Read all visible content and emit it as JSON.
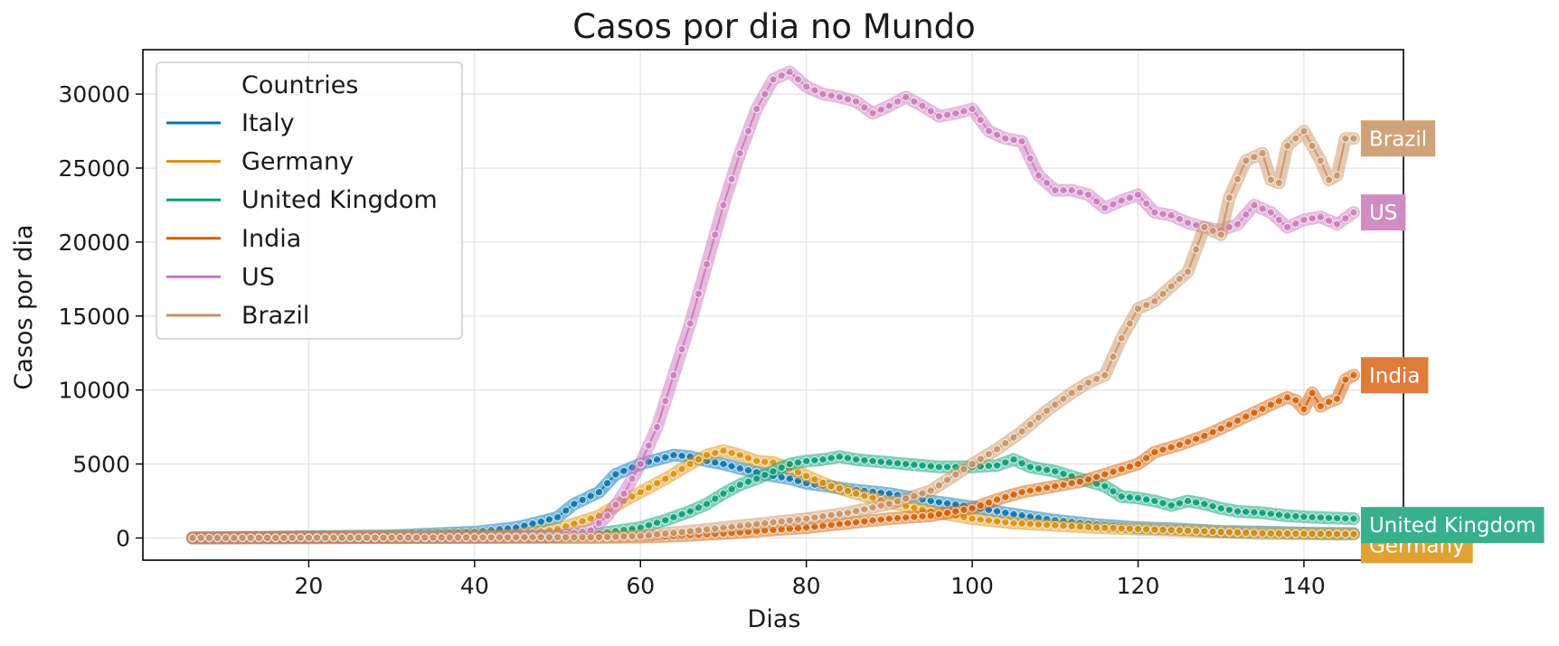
{
  "chart_data": {
    "type": "line",
    "title": "Casos por dia no Mundo",
    "xlabel": "Dias",
    "ylabel": "Casos por dia",
    "xlim": [
      0,
      152
    ],
    "ylim": [
      -1500,
      33000
    ],
    "xticks": [
      20,
      40,
      60,
      80,
      100,
      120,
      140
    ],
    "yticks": [
      0,
      5000,
      10000,
      15000,
      20000,
      25000,
      30000
    ],
    "grid": true,
    "legend": {
      "title": "Countries",
      "placement": "top-left"
    },
    "series": [
      {
        "name": "Italy",
        "color": "#0173b2",
        "points": [
          [
            6,
            0
          ],
          [
            30,
            150
          ],
          [
            40,
            400
          ],
          [
            45,
            700
          ],
          [
            48,
            1100
          ],
          [
            50,
            1400
          ],
          [
            52,
            2300
          ],
          [
            55,
            3100
          ],
          [
            57,
            4300
          ],
          [
            60,
            5000
          ],
          [
            62,
            5300
          ],
          [
            64,
            5600
          ],
          [
            66,
            5500
          ],
          [
            68,
            5200
          ],
          [
            70,
            5000
          ],
          [
            72,
            4700
          ],
          [
            75,
            4300
          ],
          [
            78,
            4000
          ],
          [
            80,
            3700
          ],
          [
            85,
            3300
          ],
          [
            90,
            3000
          ],
          [
            95,
            2500
          ],
          [
            100,
            2100
          ],
          [
            105,
            1600
          ],
          [
            110,
            1200
          ],
          [
            115,
            900
          ],
          [
            120,
            700
          ],
          [
            125,
            600
          ],
          [
            130,
            450
          ],
          [
            135,
            400
          ],
          [
            140,
            330
          ],
          [
            146,
            300
          ]
        ]
      },
      {
        "name": "Germany",
        "color": "#de8f05",
        "points": [
          [
            6,
            0
          ],
          [
            45,
            200
          ],
          [
            50,
            600
          ],
          [
            55,
            1500
          ],
          [
            58,
            2500
          ],
          [
            60,
            3100
          ],
          [
            63,
            4000
          ],
          [
            66,
            5000
          ],
          [
            68,
            5600
          ],
          [
            70,
            5900
          ],
          [
            72,
            5600
          ],
          [
            74,
            5200
          ],
          [
            76,
            5100
          ],
          [
            78,
            4700
          ],
          [
            80,
            4200
          ],
          [
            83,
            3500
          ],
          [
            86,
            3000
          ],
          [
            90,
            2400
          ],
          [
            95,
            1800
          ],
          [
            100,
            1300
          ],
          [
            105,
            1000
          ],
          [
            110,
            850
          ],
          [
            115,
            700
          ],
          [
            120,
            600
          ],
          [
            125,
            500
          ],
          [
            130,
            400
          ],
          [
            135,
            300
          ],
          [
            140,
            280
          ],
          [
            146,
            250
          ]
        ]
      },
      {
        "name": "United Kingdom",
        "color": "#029e73",
        "points": [
          [
            6,
            0
          ],
          [
            50,
            100
          ],
          [
            55,
            300
          ],
          [
            60,
            700
          ],
          [
            63,
            1200
          ],
          [
            66,
            1800
          ],
          [
            68,
            2300
          ],
          [
            70,
            3000
          ],
          [
            72,
            3600
          ],
          [
            74,
            4000
          ],
          [
            76,
            4500
          ],
          [
            78,
            5000
          ],
          [
            80,
            5200
          ],
          [
            82,
            5300
          ],
          [
            84,
            5500
          ],
          [
            86,
            5300
          ],
          [
            88,
            5200
          ],
          [
            90,
            5100
          ],
          [
            92,
            5000
          ],
          [
            94,
            4900
          ],
          [
            96,
            4800
          ],
          [
            98,
            4800
          ],
          [
            100,
            4800
          ],
          [
            103,
            4900
          ],
          [
            105,
            5300
          ],
          [
            107,
            4800
          ],
          [
            110,
            4500
          ],
          [
            113,
            4000
          ],
          [
            116,
            3500
          ],
          [
            118,
            2800
          ],
          [
            120,
            2700
          ],
          [
            122,
            2500
          ],
          [
            124,
            2200
          ],
          [
            126,
            2500
          ],
          [
            128,
            2300
          ],
          [
            130,
            2000
          ],
          [
            132,
            1800
          ],
          [
            135,
            1700
          ],
          [
            138,
            1500
          ],
          [
            141,
            1400
          ],
          [
            146,
            1300
          ]
        ]
      },
      {
        "name": "India",
        "color": "#d55e00",
        "points": [
          [
            6,
            0
          ],
          [
            60,
            50
          ],
          [
            65,
            150
          ],
          [
            70,
            300
          ],
          [
            75,
            500
          ],
          [
            80,
            700
          ],
          [
            85,
            1000
          ],
          [
            90,
            1300
          ],
          [
            95,
            1500
          ],
          [
            100,
            2000
          ],
          [
            103,
            2600
          ],
          [
            106,
            3100
          ],
          [
            110,
            3500
          ],
          [
            113,
            3800
          ],
          [
            116,
            4300
          ],
          [
            120,
            5000
          ],
          [
            122,
            5800
          ],
          [
            125,
            6300
          ],
          [
            128,
            6900
          ],
          [
            130,
            7400
          ],
          [
            133,
            8200
          ],
          [
            136,
            9000
          ],
          [
            138,
            9500
          ],
          [
            139,
            9300
          ],
          [
            140,
            8700
          ],
          [
            141,
            9800
          ],
          [
            142,
            8900
          ],
          [
            143,
            9200
          ],
          [
            144,
            9400
          ],
          [
            145,
            10700
          ],
          [
            146,
            11000
          ]
        ]
      },
      {
        "name": "US",
        "color": "#cc78bc",
        "points": [
          [
            6,
            0
          ],
          [
            40,
            50
          ],
          [
            50,
            150
          ],
          [
            54,
            500
          ],
          [
            56,
            1500
          ],
          [
            58,
            3000
          ],
          [
            60,
            5000
          ],
          [
            62,
            7500
          ],
          [
            64,
            11000
          ],
          [
            66,
            14500
          ],
          [
            68,
            18500
          ],
          [
            70,
            22500
          ],
          [
            72,
            26000
          ],
          [
            74,
            29000
          ],
          [
            76,
            31000
          ],
          [
            78,
            31500
          ],
          [
            80,
            30500
          ],
          [
            82,
            30000
          ],
          [
            84,
            29800
          ],
          [
            86,
            29500
          ],
          [
            88,
            28700
          ],
          [
            90,
            29200
          ],
          [
            92,
            29800
          ],
          [
            94,
            29200
          ],
          [
            96,
            28500
          ],
          [
            98,
            28700
          ],
          [
            100,
            29000
          ],
          [
            102,
            27500
          ],
          [
            104,
            27000
          ],
          [
            106,
            26800
          ],
          [
            108,
            24500
          ],
          [
            110,
            23500
          ],
          [
            112,
            23500
          ],
          [
            114,
            23200
          ],
          [
            116,
            22300
          ],
          [
            118,
            22800
          ],
          [
            120,
            23200
          ],
          [
            122,
            22000
          ],
          [
            124,
            21800
          ],
          [
            126,
            21300
          ],
          [
            128,
            21000
          ],
          [
            130,
            20800
          ],
          [
            132,
            21200
          ],
          [
            134,
            22500
          ],
          [
            136,
            22000
          ],
          [
            138,
            21000
          ],
          [
            140,
            21500
          ],
          [
            142,
            21700
          ],
          [
            144,
            21200
          ],
          [
            146,
            22000
          ]
        ]
      },
      {
        "name": "Brazil",
        "color": "#ca9161",
        "points": [
          [
            6,
            0
          ],
          [
            55,
            50
          ],
          [
            60,
            150
          ],
          [
            65,
            400
          ],
          [
            70,
            700
          ],
          [
            75,
            1000
          ],
          [
            80,
            1300
          ],
          [
            85,
            1700
          ],
          [
            90,
            2300
          ],
          [
            95,
            3200
          ],
          [
            100,
            5000
          ],
          [
            103,
            6000
          ],
          [
            106,
            7200
          ],
          [
            109,
            8600
          ],
          [
            112,
            9800
          ],
          [
            114,
            10500
          ],
          [
            116,
            11000
          ],
          [
            118,
            13500
          ],
          [
            120,
            15500
          ],
          [
            122,
            16000
          ],
          [
            124,
            17000
          ],
          [
            126,
            18000
          ],
          [
            128,
            21000
          ],
          [
            130,
            20500
          ],
          [
            131,
            23000
          ],
          [
            133,
            25500
          ],
          [
            135,
            26000
          ],
          [
            136,
            24200
          ],
          [
            137,
            24000
          ],
          [
            138,
            26500
          ],
          [
            140,
            27500
          ],
          [
            142,
            25500
          ],
          [
            143,
            24200
          ],
          [
            144,
            24500
          ],
          [
            145,
            27000
          ],
          [
            146,
            27000
          ]
        ]
      }
    ]
  }
}
